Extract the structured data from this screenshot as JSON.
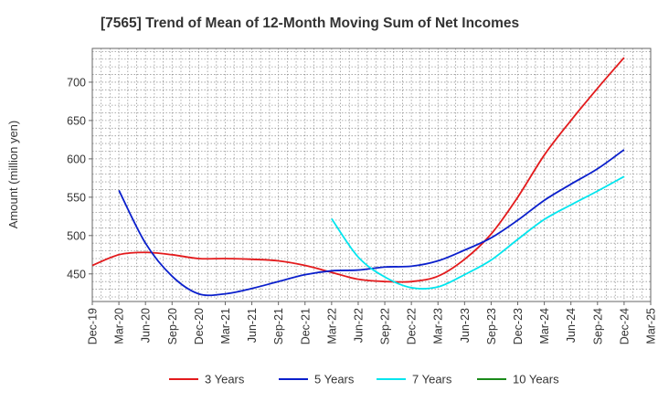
{
  "chart_data": {
    "type": "line",
    "title": "[7565]  Trend of Mean of 12-Month Moving Sum of Net Incomes",
    "ylabel": "Amount (million yen)",
    "xlabel": "",
    "ylim": [
      414,
      744
    ],
    "yticks": [
      450,
      500,
      550,
      600,
      650,
      700
    ],
    "xlim": [
      "2019-12",
      "2025-03"
    ],
    "xtick_labels": [
      "Dec-19",
      "Mar-20",
      "Jun-20",
      "Sep-20",
      "Dec-20",
      "Mar-21",
      "Jun-21",
      "Sep-21",
      "Dec-21",
      "Mar-22",
      "Jun-22",
      "Sep-22",
      "Dec-22",
      "Mar-23",
      "Jun-23",
      "Sep-23",
      "Dec-23",
      "Mar-24",
      "Jun-24",
      "Sep-24",
      "Dec-24",
      "Mar-25"
    ],
    "grid": true,
    "legend_position": "bottom",
    "series": [
      {
        "name": "3 Years",
        "color": "#e31a1c",
        "x": [
          "2019-12",
          "2020-03",
          "2020-06",
          "2020-09",
          "2020-12",
          "2021-03",
          "2021-06",
          "2021-09",
          "2021-12",
          "2022-03",
          "2022-06",
          "2022-09",
          "2022-12",
          "2023-03",
          "2023-06",
          "2023-09",
          "2023-12",
          "2024-03",
          "2024-06",
          "2024-09",
          "2024-12"
        ],
        "values": [
          461,
          475,
          478,
          475,
          470,
          470,
          469,
          467,
          461,
          452,
          443,
          440,
          440,
          447,
          469,
          502,
          550,
          605,
          650,
          692,
          732
        ]
      },
      {
        "name": "5 Years",
        "color": "#0a1fcc",
        "x": [
          "2020-03",
          "2020-06",
          "2020-09",
          "2020-12",
          "2021-03",
          "2021-06",
          "2021-09",
          "2021-12",
          "2022-03",
          "2022-06",
          "2022-09",
          "2022-12",
          "2023-03",
          "2023-06",
          "2023-09",
          "2023-12",
          "2024-03",
          "2024-06",
          "2024-09",
          "2024-12"
        ],
        "values": [
          559,
          490,
          447,
          424,
          424,
          431,
          440,
          449,
          454,
          455,
          459,
          460,
          467,
          481,
          497,
          520,
          546,
          567,
          587,
          612
        ]
      },
      {
        "name": "7 Years",
        "color": "#00e5ee",
        "x": [
          "2022-03",
          "2022-06",
          "2022-09",
          "2022-12",
          "2023-03",
          "2023-06",
          "2023-09",
          "2023-12",
          "2024-03",
          "2024-06",
          "2024-09",
          "2024-12"
        ],
        "values": [
          522,
          472,
          446,
          432,
          433,
          449,
          468,
          495,
          521,
          540,
          558,
          577
        ]
      },
      {
        "name": "10 Years",
        "color": "#1a8a1a",
        "x": [],
        "values": []
      }
    ]
  }
}
